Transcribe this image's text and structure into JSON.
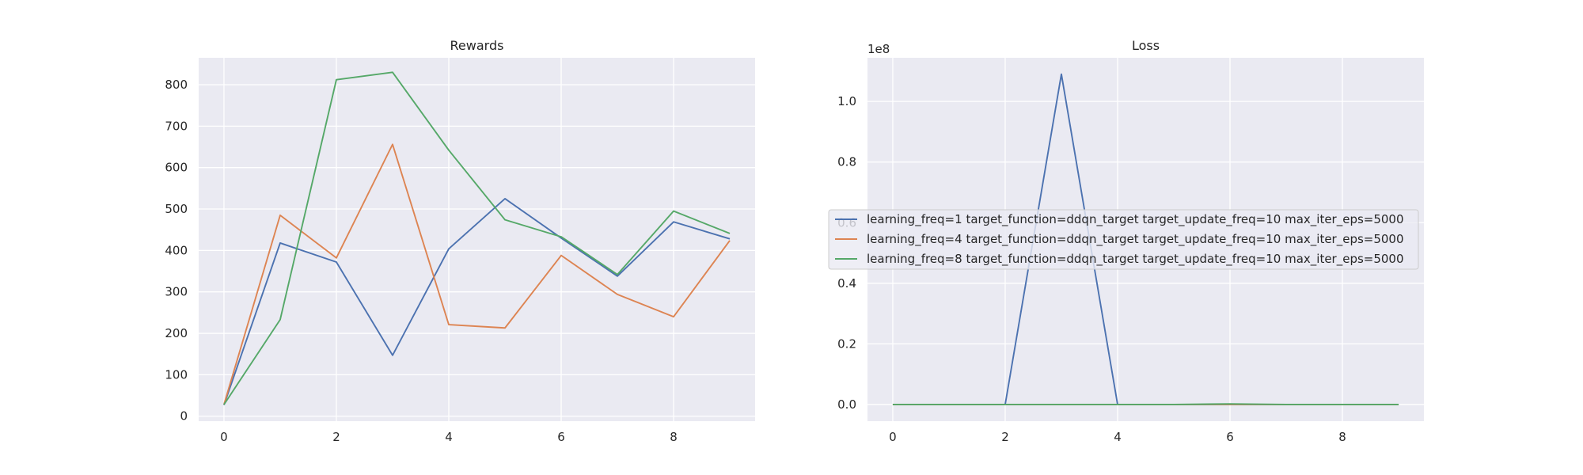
{
  "colors": {
    "figure_background": "#ffffff",
    "axes_background": "#eaeaf2",
    "grid": "#ffffff",
    "text": "#262626",
    "legend_background": "#eaeaf2",
    "legend_border": "#cccccc"
  },
  "chart_data": [
    {
      "type": "line",
      "title": "Rewards",
      "xlabel": "",
      "ylabel": "",
      "x": [
        0,
        1,
        2,
        3,
        4,
        5,
        6,
        7,
        8,
        9
      ],
      "xlim": [
        -0.45,
        9.45
      ],
      "ylim": [
        -12,
        865
      ],
      "xticks": [
        0,
        2,
        4,
        6,
        8
      ],
      "yticks": [
        0,
        100,
        200,
        300,
        400,
        500,
        600,
        700,
        800
      ],
      "xtick_labels": [
        "0",
        "2",
        "4",
        "6",
        "8"
      ],
      "ytick_labels": [
        "0",
        "100",
        "200",
        "300",
        "400",
        "500",
        "600",
        "700",
        "800"
      ],
      "offset_label": "",
      "grid": true,
      "series": [
        {
          "color": "#4c72b0",
          "values": [
            27,
            418,
            372,
            147,
            404,
            525,
            430,
            338,
            469,
            428
          ]
        },
        {
          "color": "#dd8452",
          "values": [
            28,
            485,
            382,
            656,
            221,
            213,
            388,
            294,
            240,
            424
          ]
        },
        {
          "color": "#55a868",
          "values": [
            28,
            233,
            812,
            830,
            642,
            474,
            433,
            342,
            495,
            441
          ]
        }
      ]
    },
    {
      "type": "line",
      "title": "Loss",
      "xlabel": "",
      "ylabel": "",
      "x": [
        0,
        1,
        2,
        3,
        4,
        5,
        6,
        7,
        8,
        9
      ],
      "xlim": [
        -0.45,
        9.45
      ],
      "ylim": [
        -0.055,
        1.144
      ],
      "xticks": [
        0,
        2,
        4,
        6,
        8
      ],
      "yticks": [
        0.0,
        0.2,
        0.4,
        0.6,
        0.8,
        1.0
      ],
      "xtick_labels": [
        "0",
        "2",
        "4",
        "6",
        "8"
      ],
      "ytick_labels": [
        "0.0",
        "0.2",
        "0.4",
        "0.6",
        "0.8",
        "1.0"
      ],
      "offset_label": "1e8",
      "grid": true,
      "legend_placement": "center-left",
      "series": [
        {
          "name": "learning_freq=1 target_function=ddqn_target target_update_freq=10 max_iter_eps=5000",
          "color": "#4c72b0",
          "values": [
            0,
            0,
            0,
            1.09,
            0,
            0,
            0,
            0,
            0,
            0
          ]
        },
        {
          "name": "learning_freq=4 target_function=ddqn_target target_update_freq=10 max_iter_eps=5000",
          "color": "#dd8452",
          "values": [
            0,
            0,
            0,
            0,
            0,
            0,
            0,
            0,
            0,
            0
          ]
        },
        {
          "name": "learning_freq=8 target_function=ddqn_target target_update_freq=10 max_iter_eps=5000",
          "color": "#55a868",
          "values": [
            0,
            0,
            0,
            0,
            0,
            0,
            0.002,
            0,
            0,
            0
          ]
        }
      ]
    }
  ]
}
